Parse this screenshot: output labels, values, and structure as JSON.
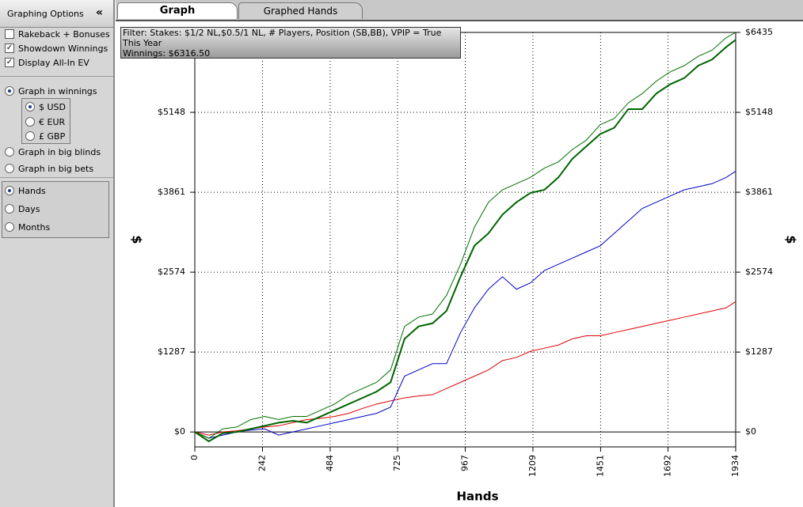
{
  "sidebar": {
    "title": "Graphing Options",
    "collapse": "«",
    "checkboxes": [
      {
        "label": "Rakeback + Bonuses",
        "checked": false
      },
      {
        "label": "Showdown Winnings",
        "checked": true
      },
      {
        "label": "Display All-In EV",
        "checked": true
      }
    ],
    "units": [
      {
        "label": "Graph in winnings",
        "selected": true
      },
      {
        "label": "Graph in big blinds",
        "selected": false
      },
      {
        "label": "Graph in big bets",
        "selected": false
      }
    ],
    "currencies": [
      {
        "label": "$ USD",
        "selected": true
      },
      {
        "label": "€ EUR",
        "selected": false
      },
      {
        "label": "£ GBP",
        "selected": false
      }
    ],
    "periods": [
      {
        "label": "Hands",
        "selected": true
      },
      {
        "label": "Days",
        "selected": false
      },
      {
        "label": "Months",
        "selected": false
      }
    ]
  },
  "tabs": [
    {
      "label": "Graph",
      "active": true
    },
    {
      "label": "Graphed Hands",
      "active": false
    }
  ],
  "filter": {
    "line1": "Filter: Stakes: $1/2 NL,$0.5/1 NL, # Players, Position (SB,BB), VPIP = True",
    "line2": "This Year",
    "line3": "Winnings: $6316.50"
  },
  "chart_data": {
    "type": "line",
    "xlabel": "Hands",
    "ylabel": "$",
    "grid": true,
    "x": [
      0,
      50,
      100,
      150,
      200,
      250,
      300,
      350,
      400,
      450,
      500,
      550,
      600,
      650,
      700,
      750,
      800,
      850,
      900,
      950,
      1000,
      1050,
      1100,
      1150,
      1200,
      1250,
      1300,
      1350,
      1400,
      1450,
      1500,
      1550,
      1600,
      1650,
      1700,
      1750,
      1800,
      1850,
      1900,
      1934
    ],
    "xlim": [
      0,
      1934
    ],
    "xticks": [
      0,
      242,
      484,
      725,
      967,
      1209,
      1451,
      1692,
      1934
    ],
    "ylim": [
      -240,
      6435
    ],
    "yticks": [
      {
        "value": 0,
        "label": "$0"
      },
      {
        "value": 1287,
        "label": "$1287"
      },
      {
        "value": 2574,
        "label": "$2574"
      },
      {
        "value": 3861,
        "label": "$3861"
      },
      {
        "value": 5148,
        "label": "$5148"
      },
      {
        "value": 6435,
        "label": "$6435"
      }
    ],
    "series": [
      {
        "color": "#dd0000",
        "line_width": 1,
        "values": [
          0,
          -50,
          0,
          20,
          50,
          80,
          100,
          150,
          200,
          220,
          250,
          300,
          380,
          450,
          500,
          550,
          580,
          600,
          700,
          800,
          900,
          1000,
          1150,
          1200,
          1300,
          1350,
          1400,
          1500,
          1550,
          1550,
          1600,
          1650,
          1700,
          1750,
          1800,
          1850,
          1900,
          1950,
          2000,
          2100
        ]
      },
      {
        "color": "#0000cc",
        "line_width": 1,
        "values": [
          0,
          -100,
          -50,
          0,
          30,
          50,
          -50,
          0,
          50,
          100,
          150,
          200,
          250,
          300,
          400,
          900,
          1000,
          1100,
          1100,
          1600,
          2000,
          2300,
          2500,
          2300,
          2400,
          2600,
          2700,
          2800,
          2900,
          3000,
          3200,
          3400,
          3600,
          3700,
          3800,
          3900,
          3950,
          4000,
          4100,
          4200
        ]
      },
      {
        "color": "#007000",
        "line_width": 1,
        "values": [
          0,
          -100,
          50,
          80,
          200,
          250,
          200,
          250,
          250,
          350,
          450,
          600,
          700,
          800,
          1000,
          1700,
          1850,
          1900,
          2200,
          2700,
          3300,
          3700,
          3900,
          4000,
          4100,
          4250,
          4350,
          4550,
          4700,
          4950,
          5050,
          5300,
          5450,
          5650,
          5800,
          5900,
          6050,
          6150,
          6350,
          6435
        ]
      },
      {
        "color": "#006400",
        "line_width": 2,
        "values": [
          0,
          -150,
          -20,
          0,
          50,
          100,
          150,
          180,
          150,
          250,
          350,
          450,
          550,
          650,
          800,
          1500,
          1700,
          1750,
          1950,
          2500,
          3000,
          3200,
          3500,
          3700,
          3850,
          3900,
          4100,
          4400,
          4600,
          4800,
          4900,
          5200,
          5200,
          5450,
          5600,
          5700,
          5900,
          6000,
          6200,
          6316.5
        ]
      }
    ]
  }
}
